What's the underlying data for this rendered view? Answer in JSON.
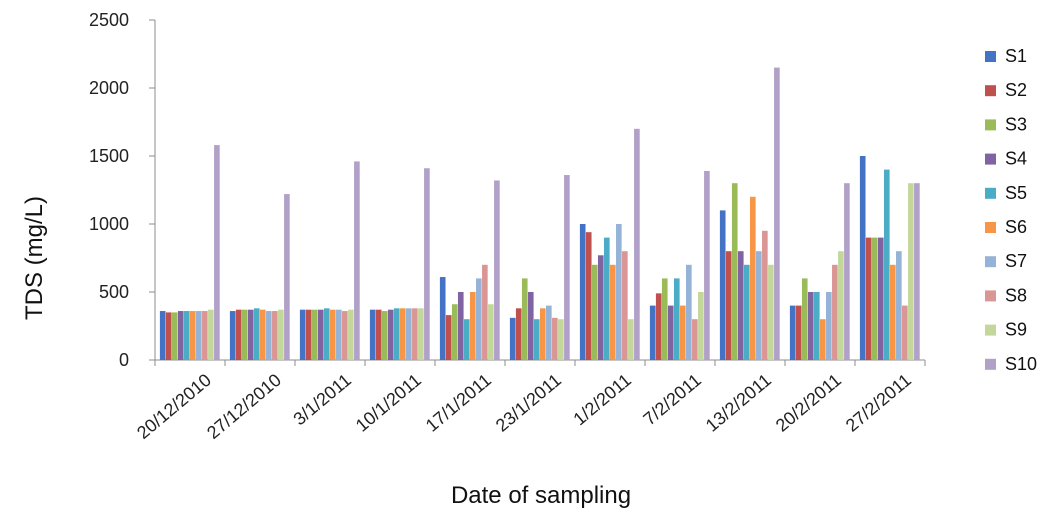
{
  "chart_data": {
    "type": "bar",
    "xlabel": "Date of sampling",
    "ylabel": "TDS (mg/L)",
    "ylim": [
      0,
      2500
    ],
    "yticks": [
      0,
      500,
      1000,
      1500,
      2000,
      2500
    ],
    "grid": false,
    "legend_position": "right",
    "categories": [
      "20/12/2010",
      "27/12/2010",
      "3/1/2011",
      "10/1/2011",
      "17/1/2011",
      "23/1/2011",
      "1/2/2011",
      "7/2/2011",
      "13/2/2011",
      "20/2/2011",
      "27/2/2011"
    ],
    "series": [
      {
        "name": "S1",
        "color": "#4472c4",
        "values": [
          360,
          360,
          370,
          370,
          610,
          310,
          1000,
          400,
          1100,
          400,
          1500
        ]
      },
      {
        "name": "S2",
        "color": "#c0504d",
        "values": [
          350,
          370,
          370,
          370,
          330,
          380,
          940,
          490,
          800,
          400,
          900
        ]
      },
      {
        "name": "S3",
        "color": "#9bbb59",
        "values": [
          350,
          370,
          370,
          360,
          410,
          600,
          700,
          600,
          1300,
          600,
          900
        ]
      },
      {
        "name": "S4",
        "color": "#8064a2",
        "values": [
          360,
          370,
          370,
          370,
          500,
          500,
          770,
          400,
          800,
          500,
          900
        ]
      },
      {
        "name": "S5",
        "color": "#4bacc6",
        "values": [
          360,
          380,
          380,
          380,
          300,
          300,
          900,
          600,
          700,
          500,
          1400
        ]
      },
      {
        "name": "S6",
        "color": "#f79646",
        "values": [
          360,
          370,
          370,
          380,
          500,
          380,
          700,
          400,
          1200,
          300,
          700
        ]
      },
      {
        "name": "S7",
        "color": "#95b3d7",
        "values": [
          360,
          360,
          370,
          380,
          600,
          400,
          1000,
          700,
          800,
          500,
          800
        ]
      },
      {
        "name": "S8",
        "color": "#da9694",
        "values": [
          360,
          360,
          360,
          380,
          700,
          310,
          800,
          300,
          950,
          700,
          400
        ]
      },
      {
        "name": "S9",
        "color": "#c4d79b",
        "values": [
          370,
          370,
          370,
          380,
          410,
          300,
          300,
          500,
          700,
          800,
          1300
        ]
      },
      {
        "name": "S10",
        "color": "#b1a0c7",
        "values": [
          1580,
          1220,
          1460,
          1410,
          1320,
          1360,
          1700,
          1390,
          2150,
          1300,
          1300
        ]
      }
    ]
  }
}
